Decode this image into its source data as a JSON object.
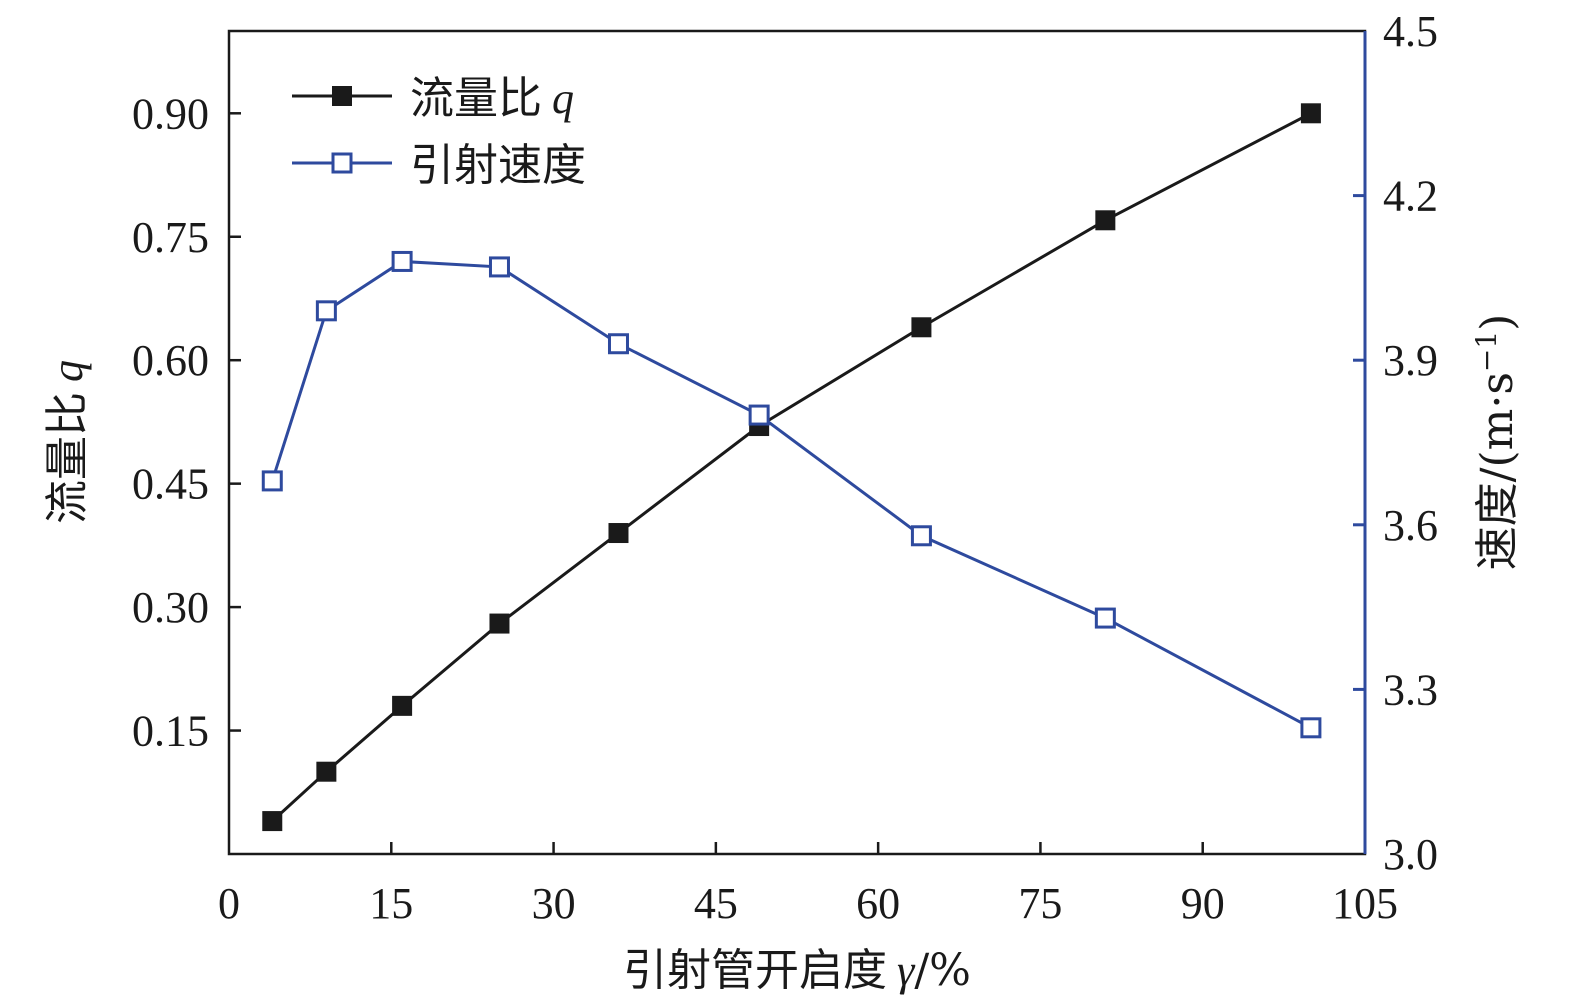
{
  "chart_data": {
    "type": "line",
    "x_axis": {
      "label_main": "引射管开启度",
      "label_var": "γ",
      "label_unit": "/%",
      "range": [
        0,
        105
      ],
      "ticks": [
        0,
        15,
        30,
        45,
        60,
        75,
        90,
        105
      ],
      "tick_labels": [
        "0",
        "15",
        "30",
        "45",
        "60",
        "75",
        "90",
        "105"
      ]
    },
    "y_left": {
      "label_main": "流量比",
      "label_var": "q",
      "range": [
        0,
        1.0
      ],
      "ticks": [
        0.15,
        0.3,
        0.45,
        0.6,
        0.75,
        0.9
      ],
      "tick_labels": [
        "0.15",
        "0.30",
        "0.45",
        "0.60",
        "0.75",
        "0.90"
      ],
      "color": "#1a1a1a"
    },
    "y_right": {
      "label_main": "速度/(m·s",
      "label_sup": "−1",
      "label_close": ")",
      "range": [
        3.0,
        4.5
      ],
      "ticks": [
        3.0,
        3.3,
        3.6,
        3.9,
        4.2,
        4.5
      ],
      "tick_labels": [
        "3.0",
        "3.3",
        "3.6",
        "3.9",
        "4.2",
        "4.5"
      ],
      "color": "#2e4a9e"
    },
    "series": [
      {
        "name_main": "流量比",
        "name_var": "q",
        "axis": "left",
        "marker": "filled-square",
        "color": "#1a1a1a",
        "x": [
          4,
          9,
          16,
          25,
          36,
          49,
          64,
          81,
          100
        ],
        "y": [
          0.04,
          0.1,
          0.18,
          0.28,
          0.39,
          0.52,
          0.64,
          0.77,
          0.9
        ]
      },
      {
        "name_main": "引射速度",
        "axis": "right",
        "marker": "open-square",
        "color": "#2e4a9e",
        "x": [
          4,
          9,
          16,
          25,
          36,
          49,
          64,
          81,
          100
        ],
        "y": [
          3.68,
          3.99,
          4.08,
          4.07,
          3.93,
          3.8,
          3.58,
          3.43,
          3.23
        ]
      }
    ],
    "legend_position": "top-left",
    "grid": false
  }
}
